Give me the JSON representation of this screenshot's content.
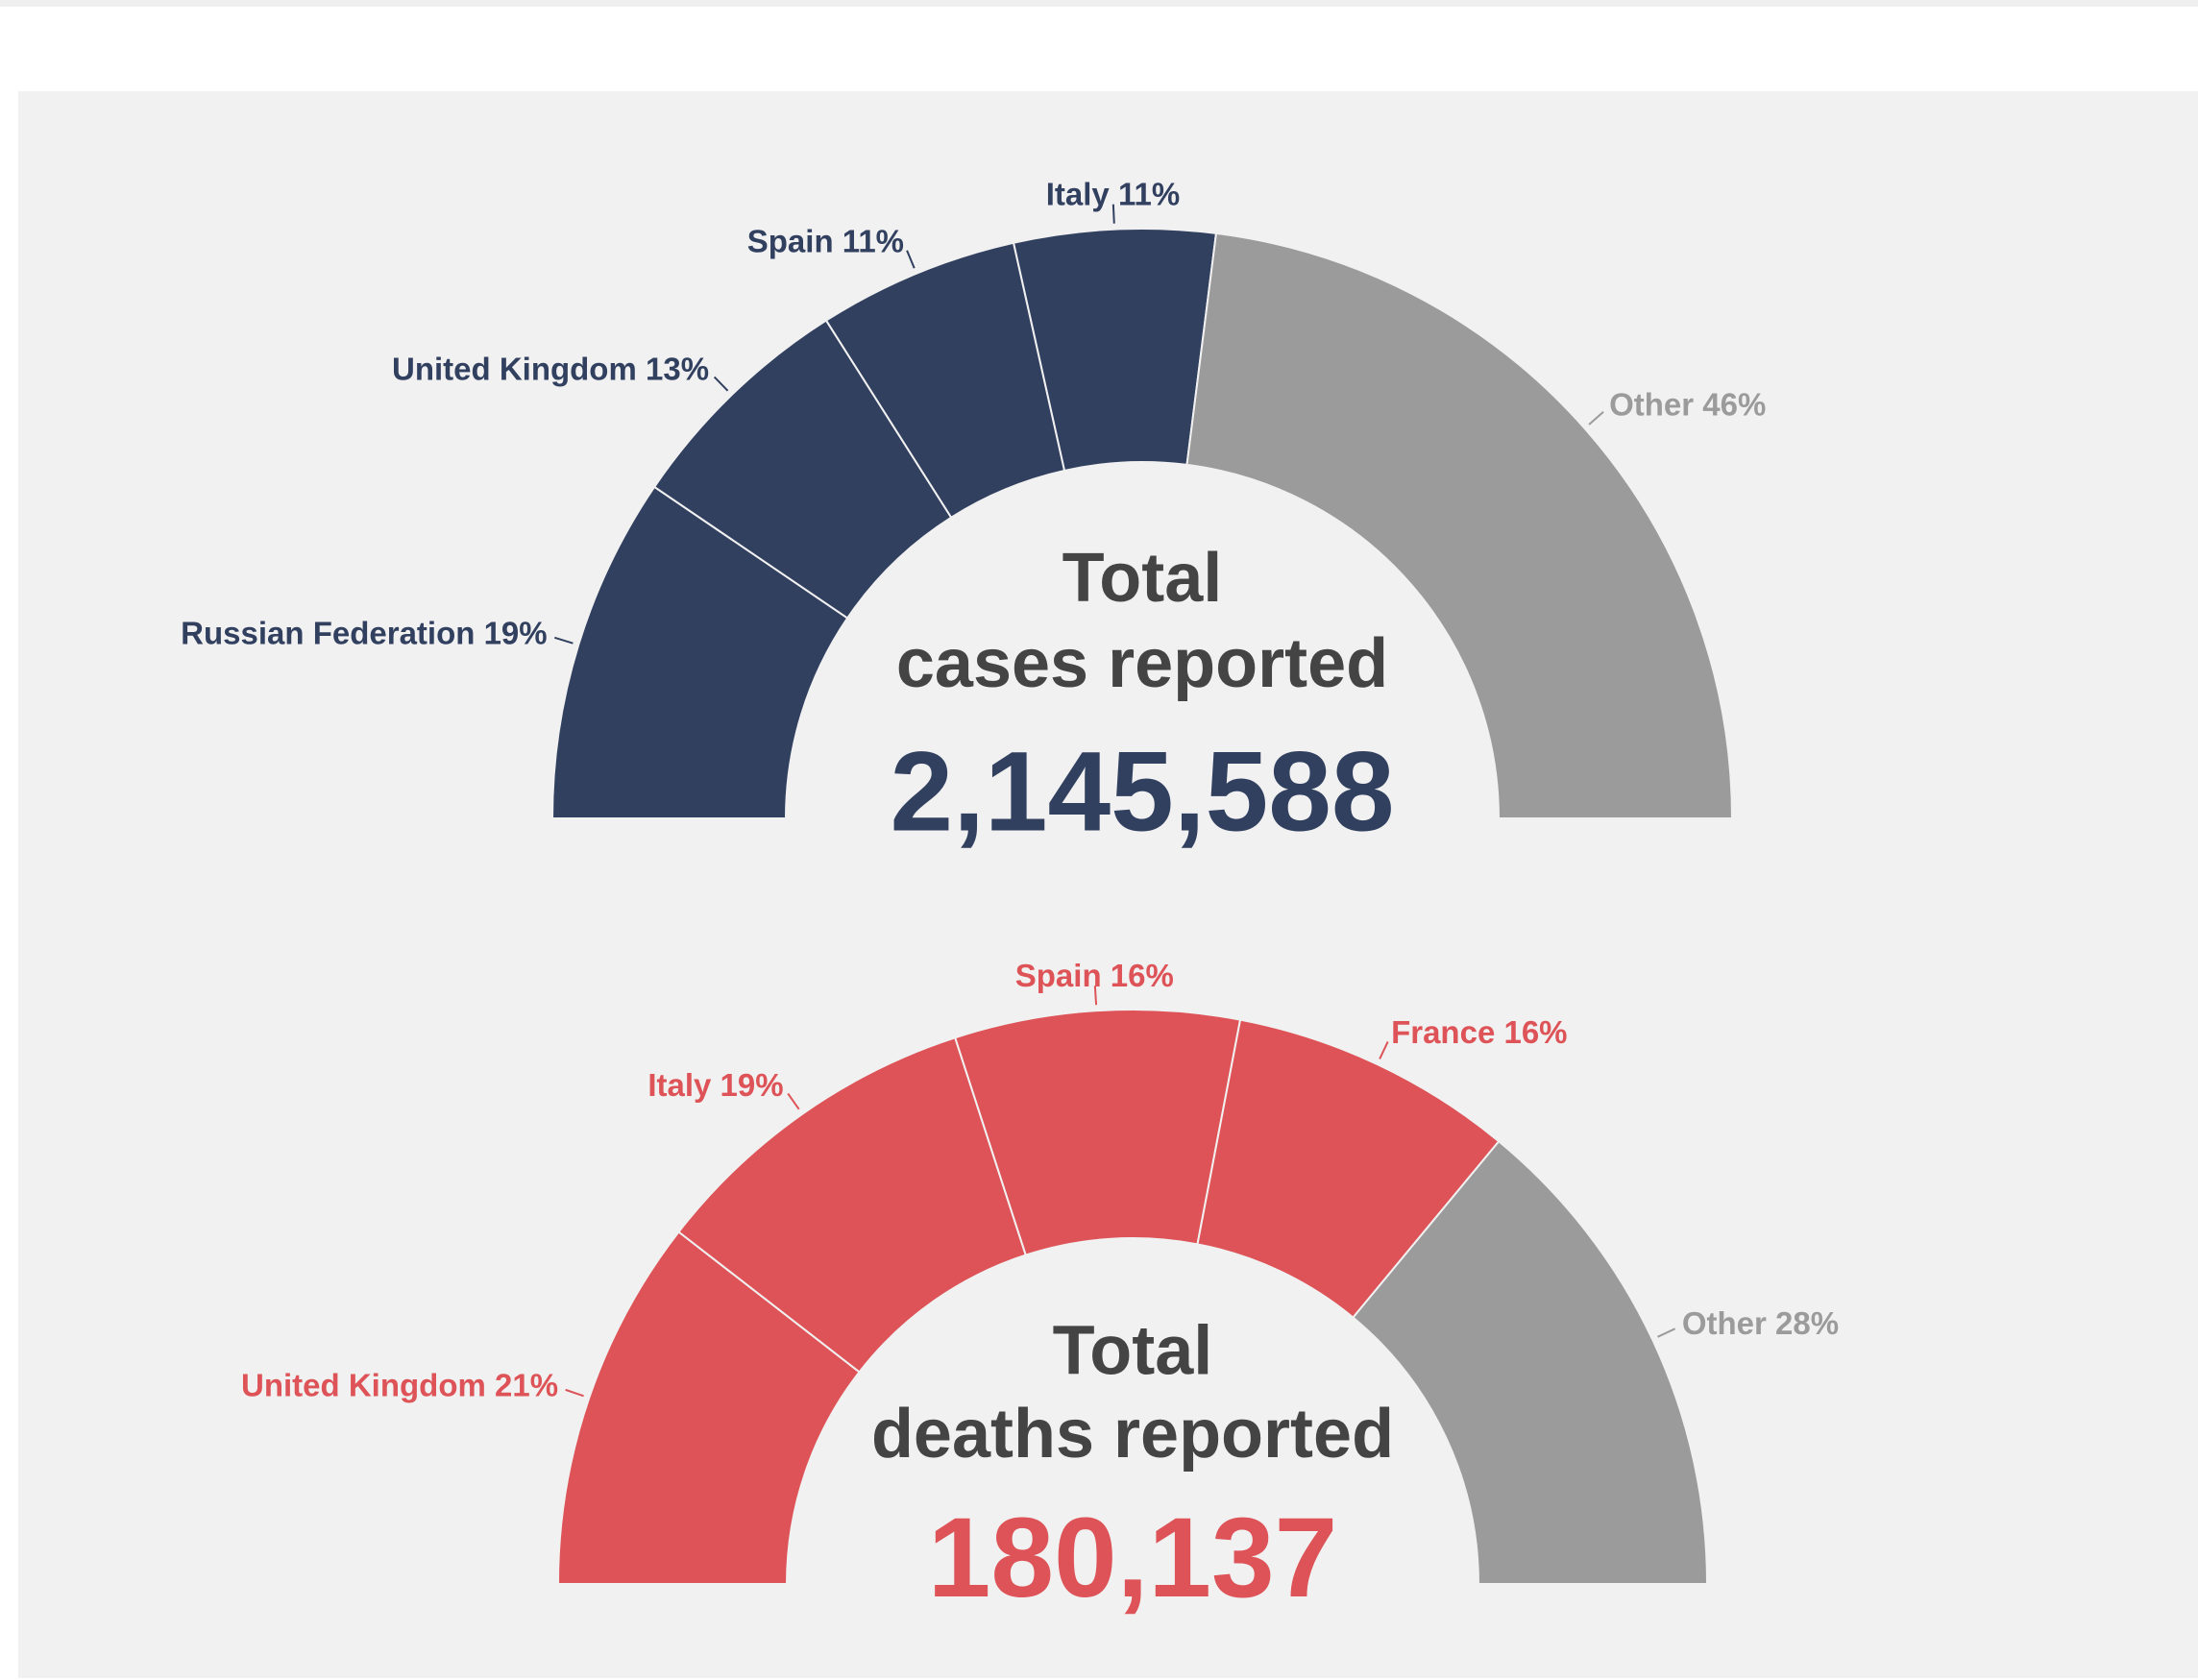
{
  "chart_data": [
    {
      "type": "semi-donut",
      "categories": [
        "Russian Federation",
        "United Kingdom",
        "Spain",
        "Italy",
        "Other"
      ],
      "values": [
        19,
        13,
        11,
        11,
        46
      ],
      "value_labels": [
        "19%",
        "13%",
        "11%",
        "11%",
        "46%"
      ],
      "colors": [
        "#324060",
        "#324060",
        "#324060",
        "#324060",
        "#9b9b9b"
      ],
      "center_text": [
        "Total",
        "cases reported",
        "2,145,588"
      ],
      "accent_color": "#324060"
    },
    {
      "type": "semi-donut",
      "categories": [
        "United Kingdom",
        "Italy",
        "Spain",
        "France",
        "Other"
      ],
      "values": [
        21,
        19,
        16,
        16,
        28
      ],
      "value_labels": [
        "21%",
        "19%",
        "16%",
        "16%",
        "28%"
      ],
      "colors": [
        "#dd5357",
        "#dd5357",
        "#dd5357",
        "#dd5357",
        "#9b9b9b"
      ],
      "center_text": [
        "Total",
        "deaths reported",
        "180,137"
      ],
      "accent_color": "#dd5357"
    }
  ]
}
